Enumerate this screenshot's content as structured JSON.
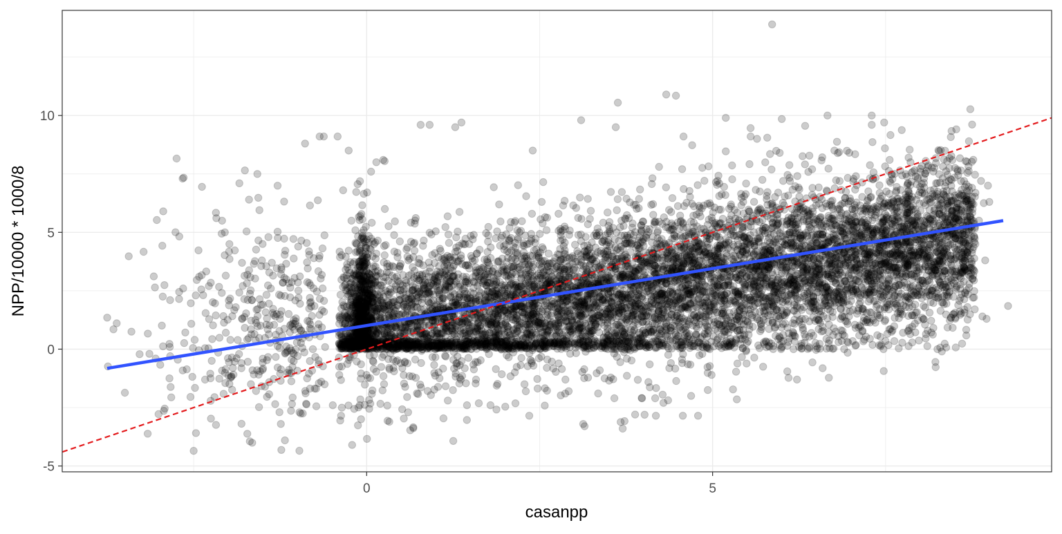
{
  "chart_data": {
    "type": "scatter",
    "title": "",
    "xlabel": "casanpp",
    "ylabel": "NPP/10000 * 1000/8",
    "xlim": [
      -4.4,
      9.9
    ],
    "ylim": [
      -5.25,
      14.5
    ],
    "x_ticks": [
      0,
      5
    ],
    "y_ticks": [
      -5,
      0,
      5,
      10
    ],
    "x_tick_labels": [
      "0",
      "5"
    ],
    "y_tick_labels": [
      "-5",
      "0",
      "5",
      "10"
    ],
    "grid": true,
    "legend": "none",
    "point_color": "#000000",
    "point_alpha": 0.2,
    "point_count_approx": 9000,
    "series": [
      {
        "type": "scatter",
        "points": [
          [
            5.86,
            13.9
          ],
          [
            -2.5,
            -4.35
          ],
          [
            -2.94,
            5.9
          ],
          [
            -2.38,
            6.95
          ],
          [
            -1.58,
            7.5
          ],
          [
            -0.68,
            9.1
          ],
          [
            0.26,
            8.05
          ],
          [
            0.24,
            8.1
          ],
          [
            4.33,
            10.9
          ],
          [
            4.47,
            10.85
          ],
          [
            3.63,
            10.55
          ],
          [
            7.48,
            9.7
          ],
          [
            7.3,
            10.0
          ],
          [
            6.66,
            10.0
          ],
          [
            5.19,
            9.9
          ],
          [
            3.1,
            9.8
          ],
          [
            1.37,
            9.7
          ],
          [
            0.78,
            9.6
          ],
          [
            0.91,
            9.6
          ],
          [
            -0.42,
            9.1
          ],
          [
            -0.62,
            9.1
          ],
          [
            -0.89,
            8.8
          ],
          [
            -0.26,
            8.5
          ],
          [
            -2.66,
            7.3
          ],
          [
            -1.76,
            7.65
          ],
          [
            -1.84,
            7.1
          ],
          [
            -1.7,
            6.4
          ],
          [
            -1.55,
            5.95
          ],
          [
            -2.09,
            5.5
          ],
          [
            -2.05,
            5.0
          ],
          [
            -1.37,
            3.7
          ],
          [
            -1.45,
            3.55
          ],
          [
            -1.63,
            3.65
          ],
          [
            -2.71,
            2.45
          ],
          [
            -2.47,
            2.3
          ],
          [
            -2.28,
            2.7
          ],
          [
            -1.66,
            2.1
          ],
          [
            -1.21,
            2.85
          ],
          [
            -1.3,
            1.5
          ],
          [
            -1.45,
            1.05
          ],
          [
            -3.75,
            1.35
          ],
          [
            -3.66,
            0.85
          ],
          [
            -3.4,
            0.75
          ],
          [
            -3.14,
            -0.2
          ],
          [
            -3.05,
            -0.4
          ],
          [
            -2.84,
            -0.3
          ],
          [
            -2.85,
            -1.25
          ],
          [
            -2.73,
            -0.45
          ],
          [
            -2.51,
            0.05
          ],
          [
            -2.24,
            -0.5
          ],
          [
            -2.26,
            -1.05
          ],
          [
            -2.2,
            -2.05
          ],
          [
            -1.65,
            -0.9
          ],
          [
            -1.54,
            -0.95
          ],
          [
            -1.25,
            -1.05
          ],
          [
            -1.24,
            -3.2
          ],
          [
            -0.97,
            -2.7
          ],
          [
            -0.86,
            -1.25
          ],
          [
            -0.49,
            -2.4
          ],
          [
            -0.37,
            -2.85
          ],
          [
            -0.21,
            -4.1
          ],
          [
            -0.1,
            -2.4
          ],
          [
            0.6,
            -2.7
          ],
          [
            1.36,
            -1.3
          ],
          [
            1.79,
            -2.4
          ],
          [
            2.35,
            -2.85
          ],
          [
            2.87,
            -1.9
          ],
          [
            2.92,
            -1.8
          ],
          [
            3.13,
            -3.2
          ],
          [
            3.15,
            -3.3
          ],
          [
            3.44,
            -1.25
          ],
          [
            3.58,
            -2.1
          ],
          [
            3.7,
            -3.4
          ],
          [
            3.98,
            -2.1
          ],
          [
            3.88,
            -2.8
          ],
          [
            4.17,
            -2.1
          ],
          [
            4.29,
            -2.3
          ],
          [
            4.18,
            -2.85
          ],
          [
            4.57,
            -2.85
          ],
          [
            4.69,
            -2.0
          ],
          [
            4.79,
            -2.85
          ],
          [
            4.93,
            -1.75
          ],
          [
            5.35,
            -2.15
          ],
          [
            5.73,
            -0.75
          ],
          [
            6.08,
            -0.95
          ],
          [
            6.22,
            -1.3
          ],
          [
            5.99,
            0.0
          ],
          [
            6.17,
            0.0
          ],
          [
            7.5,
            0.35
          ],
          [
            7.47,
            0.0
          ],
          [
            8.25,
            0.0
          ],
          [
            8.22,
            -0.55
          ],
          [
            8.38,
            1.95
          ],
          [
            8.18,
            2.5
          ],
          [
            8.9,
            1.4
          ],
          [
            8.96,
            1.3
          ],
          [
            9.27,
            1.85
          ],
          [
            8.94,
            3.8
          ],
          [
            8.85,
            5.5
          ],
          [
            8.92,
            6.25
          ],
          [
            9.0,
            6.3
          ],
          [
            8.98,
            7.0
          ],
          [
            8.88,
            7.2
          ],
          [
            8.11,
            7.8
          ],
          [
            7.86,
            8.0
          ],
          [
            7.3,
            9.6
          ],
          [
            6.76,
            8.5
          ],
          [
            6.0,
            9.85
          ],
          [
            5.79,
            9.05
          ],
          [
            5.55,
            9.1
          ],
          [
            5.83,
            8.35
          ],
          [
            5.97,
            8.4
          ],
          [
            4.58,
            9.1
          ],
          [
            3.6,
            9.5
          ],
          [
            2.4,
            8.5
          ],
          [
            1.28,
            9.5
          ],
          [
            0.14,
            8.0
          ],
          [
            -0.34,
            6.8
          ],
          [
            -0.22,
            5.5
          ]
        ]
      },
      {
        "type": "line",
        "name": "",
        "color": "#3153ff",
        "dash": "solid",
        "x": [
          -3.75,
          9.2
        ],
        "y": [
          -0.82,
          5.5
        ]
      },
      {
        "type": "line",
        "name": "",
        "color": "#e31a1c",
        "dash": "dashed",
        "x": [
          -4.4,
          9.9
        ],
        "y": [
          -4.4,
          9.9
        ]
      }
    ]
  }
}
